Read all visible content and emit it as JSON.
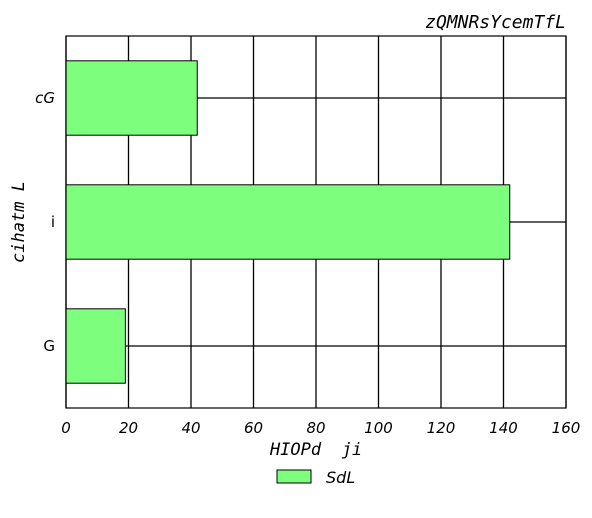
{
  "chart_data": {
    "type": "bar",
    "orientation": "horizontal",
    "title": "zQMNRsYcemTfL",
    "xlabel": "HIOPd  ji",
    "ylabel": "cihatm L",
    "categories": [
      "G",
      "i",
      "cG"
    ],
    "series": [
      {
        "name": "SdL",
        "values": [
          19,
          142,
          42
        ],
        "color": "#7dff7d"
      }
    ],
    "xlim": [
      0,
      160
    ],
    "xticks": [
      "0",
      "20",
      "40",
      "60",
      "80",
      "100",
      "120",
      "140",
      "160"
    ],
    "grid": true,
    "legend_position": "bottom-center"
  }
}
